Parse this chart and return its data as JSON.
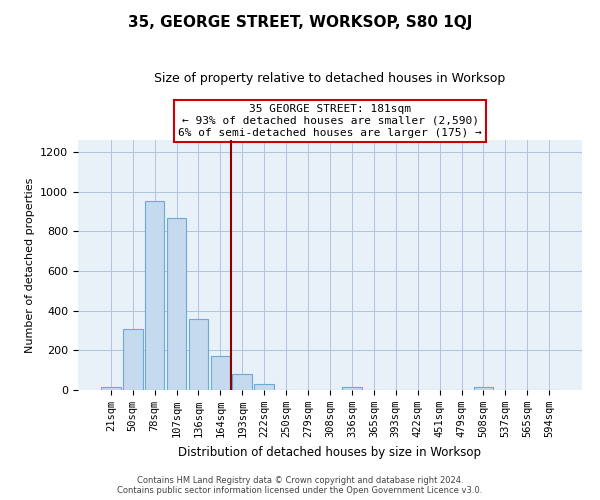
{
  "title": "35, GEORGE STREET, WORKSOP, S80 1QJ",
  "subtitle": "Size of property relative to detached houses in Worksop",
  "xlabel": "Distribution of detached houses by size in Worksop",
  "ylabel": "Number of detached properties",
  "bar_color": "#c5d9ef",
  "bar_edge_color": "#6aaad4",
  "bg_color": "#e8f0f8",
  "fig_bg_color": "#ffffff",
  "grid_color": "#b0c4de",
  "ann_box_color": "#cc0000",
  "vline_color": "#8b0000",
  "categories": [
    "21sqm",
    "50sqm",
    "78sqm",
    "107sqm",
    "136sqm",
    "164sqm",
    "193sqm",
    "222sqm",
    "250sqm",
    "279sqm",
    "308sqm",
    "336sqm",
    "365sqm",
    "393sqm",
    "422sqm",
    "451sqm",
    "479sqm",
    "508sqm",
    "537sqm",
    "565sqm",
    "594sqm"
  ],
  "values": [
    15,
    305,
    955,
    865,
    360,
    170,
    80,
    30,
    0,
    0,
    0,
    15,
    0,
    0,
    0,
    0,
    0,
    15,
    0,
    0,
    0
  ],
  "ylim": [
    0,
    1260
  ],
  "yticks": [
    0,
    200,
    400,
    600,
    800,
    1000,
    1200
  ],
  "annotation_line1": "35 GEORGE STREET: 181sqm",
  "annotation_line2": "← 93% of detached houses are smaller (2,590)",
  "annotation_line3": "6% of semi-detached houses are larger (175) →",
  "vline_x": 5.5,
  "footer_line1": "Contains HM Land Registry data © Crown copyright and database right 2024.",
  "footer_line2": "Contains public sector information licensed under the Open Government Licence v3.0."
}
